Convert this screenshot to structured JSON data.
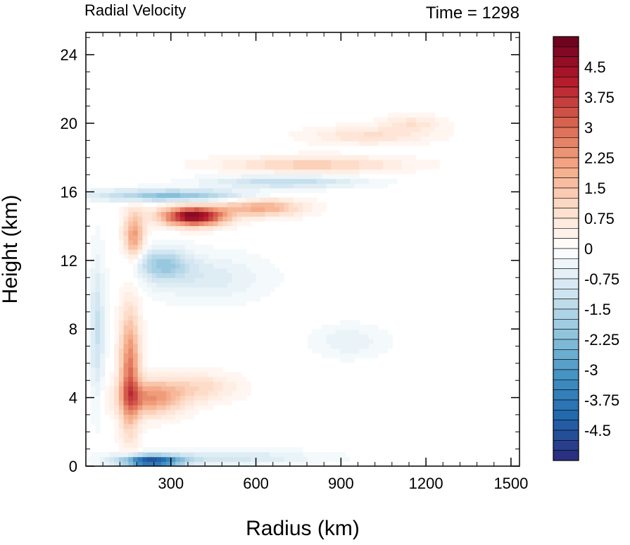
{
  "chart_data": {
    "type": "heatmap",
    "title": "Radial Velocity",
    "subtitle": "Time = 1298",
    "xlabel": "Radius (km)",
    "ylabel": "Height (km)",
    "xlim": [
      0,
      1530
    ],
    "ylim": [
      0,
      25.3
    ],
    "x_ticks": [
      300,
      600,
      900,
      1200,
      1500
    ],
    "x_tick_labels": [
      "300",
      "600",
      "900",
      "1200",
      "1500"
    ],
    "y_ticks": [
      0,
      4,
      8,
      12,
      16,
      20,
      24
    ],
    "y_tick_labels": [
      "0",
      "4",
      "8",
      "12",
      "16",
      "20",
      "24"
    ],
    "colorbar": {
      "min": -5.25,
      "max": 5.25,
      "step": 0.25,
      "tick_values": [
        4.5,
        3.75,
        3,
        2.25,
        1.5,
        0.75,
        0,
        -0.75,
        -1.5,
        -2.25,
        -3,
        -3.75,
        -4.5
      ],
      "tick_labels": [
        "4.5",
        "3.75",
        "3",
        "2.25",
        "1.5",
        "0.75",
        "0",
        "-0.75",
        "-1.5",
        "-2.25",
        "-3",
        "-3.75",
        "-4.5"
      ],
      "colormap": [
        "#2b2a7a",
        "#2166ac",
        "#4393c3",
        "#92c5de",
        "#d1e5f0",
        "#ffffff",
        "#fddbc7",
        "#f4a582",
        "#d6604d",
        "#b2182b",
        "#67001f"
      ]
    },
    "features": [
      {
        "name": "upper-outflow-jet",
        "x": 380,
        "y": 14.6,
        "sx": 110,
        "sy": 0.55,
        "value": 5.0
      },
      {
        "name": "upper-outflow-tail",
        "x": 620,
        "y": 15.1,
        "sx": 140,
        "sy": 0.5,
        "value": 2.0
      },
      {
        "name": "upper-inflow-layer",
        "x": 300,
        "y": 15.8,
        "sx": 260,
        "sy": 0.35,
        "value": -2.2
      },
      {
        "name": "upper-inflow-band-2",
        "x": 700,
        "y": 16.6,
        "sx": 260,
        "sy": 0.35,
        "value": -1.4
      },
      {
        "name": "tropopause-outflow-band",
        "x": 800,
        "y": 17.6,
        "sx": 300,
        "sy": 0.45,
        "value": 1.3
      },
      {
        "name": "top-outflow-band",
        "x": 1000,
        "y": 19.3,
        "sx": 200,
        "sy": 0.5,
        "value": 0.9
      },
      {
        "name": "top-outflow-far",
        "x": 1150,
        "y": 20.0,
        "sx": 100,
        "sy": 0.45,
        "value": 0.8
      },
      {
        "name": "mid-inflow",
        "x": 270,
        "y": 11.8,
        "sx": 90,
        "sy": 0.9,
        "value": -1.8
      },
      {
        "name": "mid-inflow-outer",
        "x": 420,
        "y": 11.0,
        "sx": 200,
        "sy": 1.3,
        "value": -0.8
      },
      {
        "name": "mid-inflow-far",
        "x": 930,
        "y": 7.3,
        "sx": 120,
        "sy": 0.9,
        "value": -0.6
      },
      {
        "name": "low-outflow",
        "x": 230,
        "y": 4.0,
        "sx": 110,
        "sy": 1.0,
        "value": 2.3
      },
      {
        "name": "low-outflow-outer",
        "x": 400,
        "y": 4.6,
        "sx": 130,
        "sy": 0.8,
        "value": 1.0
      },
      {
        "name": "near-core-outflow-column",
        "x": 155,
        "y": 5.5,
        "sx": 35,
        "sy": 3.5,
        "value": 2.8
      },
      {
        "name": "eyewall-column-upper",
        "x": 170,
        "y": 13.5,
        "sx": 35,
        "sy": 1.4,
        "value": 2.2
      },
      {
        "name": "surface-inflow",
        "x": 230,
        "y": 0.3,
        "sx": 110,
        "sy": 0.35,
        "value": -4.5
      },
      {
        "name": "surface-inflow-outer",
        "x": 500,
        "y": 0.5,
        "sx": 300,
        "sy": 0.4,
        "value": -1.0
      },
      {
        "name": "inner-core-inflow-column",
        "x": 40,
        "y": 8.0,
        "sx": 25,
        "sy": 4.0,
        "value": -1.2
      }
    ]
  }
}
